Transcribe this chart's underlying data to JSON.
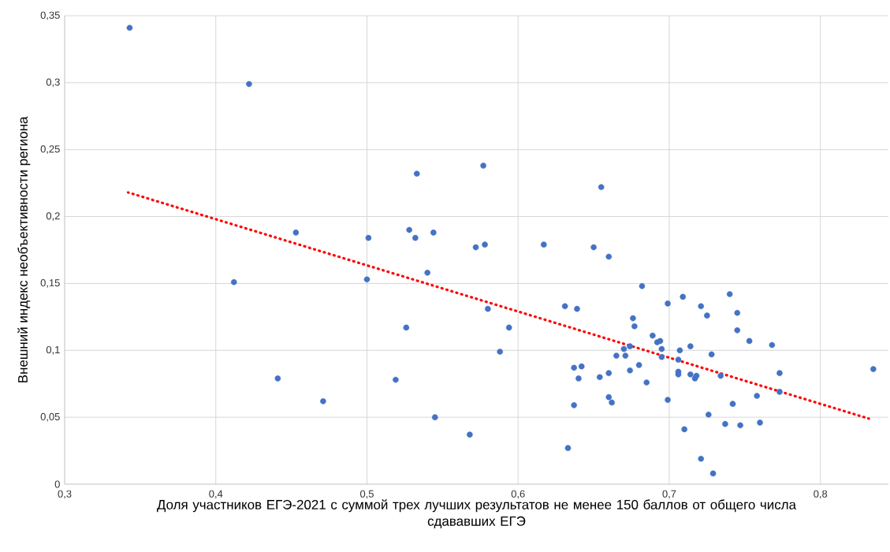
{
  "chart_data": {
    "type": "scatter",
    "xlabel": "Доля участников ЕГЭ-2021 с суммой трех лучших результатов не менее 150 баллов от общего числа сдававших ЕГЭ",
    "ylabel": "Внешний индекс необъективности региона",
    "xlim": [
      0.3,
      0.845
    ],
    "ylim": [
      0,
      0.35
    ],
    "xticks": [
      {
        "value": 0.3,
        "label": "0,3"
      },
      {
        "value": 0.4,
        "label": "0,4"
      },
      {
        "value": 0.5,
        "label": "0,5"
      },
      {
        "value": 0.6,
        "label": "0,6"
      },
      {
        "value": 0.7,
        "label": "0,7"
      },
      {
        "value": 0.8,
        "label": "0,8"
      }
    ],
    "yticks": [
      0,
      {
        "value": 0.05,
        "label": "0,05"
      },
      {
        "value": 0.1,
        "label": "0,1"
      },
      {
        "value": 0.15,
        "label": "0,15"
      },
      {
        "value": 0.2,
        "label": "0,2"
      },
      {
        "value": 0.25,
        "label": "0,25"
      },
      {
        "value": 0.3,
        "label": "0,3"
      },
      {
        "value": 0.35,
        "label": "0,35"
      }
    ],
    "grid": true,
    "series": [
      {
        "color": "#4472c4",
        "marker": "circle",
        "x": [
          0.343,
          0.422,
          0.412,
          0.441,
          0.453,
          0.471,
          0.5,
          0.501,
          0.519,
          0.526,
          0.528,
          0.532,
          0.533,
          0.54,
          0.544,
          0.545,
          0.568,
          0.572,
          0.577,
          0.578,
          0.58,
          0.594,
          0.588,
          0.617,
          0.65,
          0.66,
          0.655,
          0.682,
          0.699,
          0.631,
          0.639,
          0.676,
          0.677,
          0.689,
          0.692,
          0.694,
          0.695,
          0.695,
          0.67,
          0.674,
          0.665,
          0.671,
          0.68,
          0.674,
          0.685,
          0.637,
          0.642,
          0.64,
          0.654,
          0.66,
          0.66,
          0.662,
          0.637,
          0.699,
          0.633,
          0.709,
          0.721,
          0.725,
          0.74,
          0.745,
          0.745,
          0.753,
          0.768,
          0.707,
          0.714,
          0.728,
          0.706,
          0.706,
          0.706,
          0.714,
          0.717,
          0.718,
          0.734,
          0.773,
          0.773,
          0.758,
          0.835,
          0.742,
          0.726,
          0.71,
          0.737,
          0.747,
          0.76,
          0.721,
          0.729
        ],
        "values": [
          0.341,
          0.299,
          0.151,
          0.079,
          0.188,
          0.062,
          0.153,
          0.184,
          0.078,
          0.117,
          0.19,
          0.184,
          0.232,
          0.158,
          0.188,
          0.05,
          0.037,
          0.177,
          0.238,
          0.179,
          0.131,
          0.117,
          0.099,
          0.179,
          0.177,
          0.17,
          0.222,
          0.148,
          0.135,
          0.133,
          0.131,
          0.124,
          0.118,
          0.111,
          0.106,
          0.107,
          0.101,
          0.095,
          0.101,
          0.103,
          0.096,
          0.096,
          0.089,
          0.085,
          0.076,
          0.087,
          0.088,
          0.079,
          0.08,
          0.083,
          0.065,
          0.061,
          0.059,
          0.063,
          0.027,
          0.14,
          0.133,
          0.126,
          0.142,
          0.128,
          0.115,
          0.107,
          0.104,
          0.1,
          0.103,
          0.097,
          0.093,
          0.084,
          0.082,
          0.082,
          0.079,
          0.081,
          0.081,
          0.083,
          0.069,
          0.066,
          0.086,
          0.06,
          0.052,
          0.041,
          0.045,
          0.044,
          0.046,
          0.019,
          0.008
        ]
      },
      {
        "type": "line",
        "color": "#ff0000",
        "line_style": "dotted",
        "marker": "none",
        "x": [
          0.342,
          0.832
        ],
        "values": [
          0.218,
          0.049
        ]
      }
    ]
  }
}
